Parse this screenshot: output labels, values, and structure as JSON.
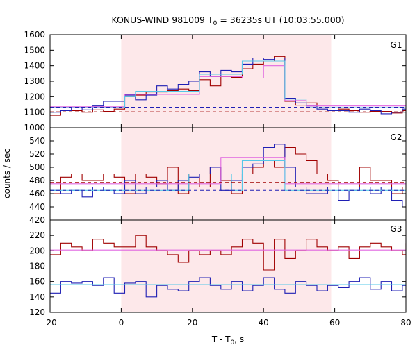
{
  "chart_data": {
    "type": "line",
    "title": "KONUS-WIND 981009 T",
    "title_sub": "0",
    "title_rest": " = 36235s UT (10:03:55.000)",
    "xlabel": "T - T",
    "xlabel_sub": "0",
    "xlabel_rest": ", s",
    "ylabel": "counts / sec",
    "xlim": [
      -20,
      80
    ],
    "xticks": [
      -20,
      0,
      20,
      40,
      60,
      80
    ],
    "highlight_interval": [
      0,
      59
    ],
    "colors": {
      "dark_red": "#a00000",
      "blue": "#1f1fb4",
      "pink": "#e066e0",
      "cyan": "#55c8e8",
      "shade": "#fde8ea"
    },
    "panels": [
      {
        "label": "G1",
        "ylim": [
          1000,
          1600
        ],
        "yticks": [
          1000,
          1100,
          1200,
          1300,
          1400,
          1500,
          1600
        ],
        "series": [
          {
            "color": "#a00000",
            "style": "step",
            "x0": -20,
            "dx": 3,
            "values": [
              1080,
              1110,
              1110,
              1100,
              1115,
              1105,
              1120,
              1200,
              1210,
              1230,
              1230,
              1240,
              1250,
              1240,
              1310,
              1270,
              1330,
              1325,
              1380,
              1410,
              1430,
              1460,
              1170,
              1145,
              1160,
              1130,
              1130,
              1120,
              1110,
              1100,
              1105,
              1105,
              1095,
              1110
            ]
          },
          {
            "color": "#1f1fb4",
            "style": "step",
            "x0": -20,
            "dx": 3,
            "values": [
              1100,
              1110,
              1130,
              1115,
              1140,
              1170,
              1170,
              1210,
              1180,
              1210,
              1270,
              1250,
              1280,
              1300,
              1360,
              1330,
              1370,
              1360,
              1410,
              1450,
              1440,
              1450,
              1190,
              1160,
              1140,
              1120,
              1110,
              1110,
              1100,
              1120,
              1110,
              1090,
              1100,
              1120
            ]
          },
          {
            "color": "#e066e0",
            "style": "step",
            "x0": -20,
            "dx": 3,
            "values": [
              1135,
              1135,
              1135,
              1135,
              1135,
              1135,
              1135,
              1215,
              1215,
              1215,
              1215,
              1215,
              1215,
              1215,
              1330,
              1330,
              1330,
              1330,
              1320,
              1320,
              1400,
              1400,
              1175,
              1175,
              1140,
              1140,
              1140,
              1140,
              1140,
              1140,
              1140,
              1140,
              1140,
              1140
            ]
          },
          {
            "color": "#55c8e8",
            "style": "step",
            "x0": -20,
            "dx": 3,
            "values": [
              1130,
              1130,
              1130,
              1130,
              1130,
              1130,
              1130,
              1200,
              1235,
              1235,
              1235,
              1235,
              1235,
              1235,
              1345,
              1345,
              1345,
              1345,
              1430,
              1430,
              1430,
              1430,
              1185,
              1185,
              1130,
              1130,
              1130,
              1130,
              1130,
              1130,
              1130,
              1130,
              1130,
              1130
            ]
          },
          {
            "color": "#a00000",
            "style": "dashed",
            "y": 1102
          },
          {
            "color": "#1f1fb4",
            "style": "dashed",
            "y": 1132
          }
        ]
      },
      {
        "label": "G2",
        "ylim": [
          420,
          560
        ],
        "yticks": [
          420,
          440,
          460,
          480,
          500,
          520,
          540
        ],
        "series": [
          {
            "color": "#a00000",
            "style": "step",
            "x0": -20,
            "dx": 3,
            "values": [
              460,
              485,
              490,
              480,
              480,
              490,
              485,
              460,
              490,
              485,
              475,
              500,
              460,
              490,
              470,
              500,
              480,
              460,
              490,
              500,
              510,
              500,
              530,
              520,
              510,
              490,
              480,
              470,
              470,
              500,
              480,
              480,
              460,
              470
            ]
          },
          {
            "color": "#1f1fb4",
            "style": "step",
            "x0": -20,
            "dx": 3,
            "values": [
              465,
              460,
              465,
              455,
              470,
              465,
              460,
              480,
              460,
              470,
              480,
              465,
              480,
              485,
              490,
              500,
              465,
              480,
              500,
              505,
              530,
              535,
              500,
              470,
              460,
              460,
              470,
              450,
              465,
              470,
              460,
              470,
              450,
              440
            ]
          },
          {
            "color": "#e066e0",
            "style": "step",
            "x0": -20,
            "dx": 3,
            "values": [
              475,
              475,
              475,
              475,
              475,
              475,
              475,
              475,
              475,
              475,
              475,
              475,
              475,
              475,
              475,
              475,
              515,
              515,
              515,
              515,
              515,
              515,
              475,
              475,
              475,
              475,
              475,
              475,
              475,
              475,
              475,
              475,
              475,
              475
            ]
          },
          {
            "color": "#55c8e8",
            "style": "step",
            "x0": -20,
            "dx": 3,
            "values": [
              465,
              465,
              465,
              465,
              465,
              465,
              465,
              465,
              465,
              465,
              465,
              465,
              465,
              490,
              490,
              490,
              490,
              465,
              510,
              510,
              510,
              510,
              465,
              465,
              465,
              465,
              465,
              465,
              465,
              465,
              465,
              465,
              465,
              465
            ]
          },
          {
            "color": "#a00000",
            "style": "dashed",
            "y": 477
          },
          {
            "color": "#1f1fb4",
            "style": "dashed",
            "y": 465
          }
        ]
      },
      {
        "label": "G3",
        "ylim": [
          120,
          240
        ],
        "yticks": [
          120,
          140,
          160,
          180,
          200,
          220
        ],
        "series": [
          {
            "color": "#a00000",
            "style": "step",
            "x0": -20,
            "dx": 3,
            "values": [
              195,
              210,
              205,
              200,
              215,
              210,
              205,
              205,
              220,
              205,
              200,
              195,
              185,
              200,
              195,
              200,
              195,
              205,
              215,
              210,
              175,
              215,
              190,
              200,
              215,
              205,
              200,
              205,
              190,
              205,
              210,
              205,
              200,
              195,
              210,
              195
            ]
          },
          {
            "color": "#1f1fb4",
            "style": "step",
            "x0": -20,
            "dx": 3,
            "values": [
              145,
              160,
              158,
              160,
              155,
              165,
              145,
              158,
              160,
              140,
              155,
              150,
              148,
              160,
              165,
              155,
              150,
              160,
              148,
              155,
              165,
              150,
              145,
              160,
              155,
              148,
              155,
              152,
              160,
              165,
              150,
              160,
              148,
              155,
              160,
              140
            ]
          },
          {
            "color": "#e066e0",
            "style": "flat",
            "y": 201
          },
          {
            "color": "#55c8e8",
            "style": "flat",
            "y": 156
          }
        ]
      }
    ]
  }
}
